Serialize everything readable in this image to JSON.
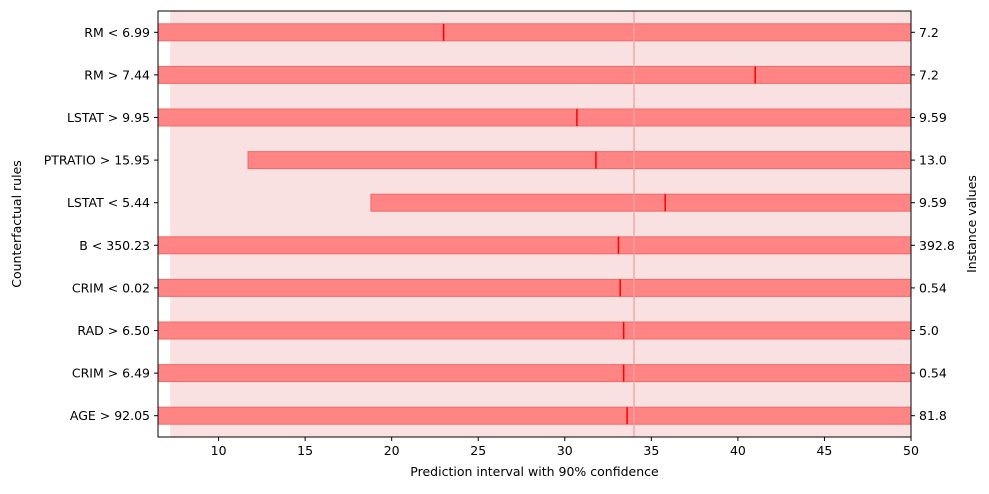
{
  "chart_data": {
    "type": "bar",
    "orientation": "horizontal",
    "xlabel": "Prediction interval with 90% confidence",
    "ylabel": "Counterfactual rules",
    "ylabel_right": "Instance values",
    "xlim": [
      6.5,
      50
    ],
    "xticks": [
      10,
      15,
      20,
      25,
      30,
      35,
      40,
      45,
      50
    ],
    "grid": false,
    "legend": "none",
    "baseline": {
      "prediction": 34.0,
      "interval": [
        7.2,
        50
      ]
    },
    "rules": [
      {
        "label": "RM < 6.99",
        "low": 6.5,
        "high": 50,
        "prediction": 23.0,
        "instance_value": "7.2"
      },
      {
        "label": "RM > 7.44",
        "low": 6.5,
        "high": 50,
        "prediction": 41.0,
        "instance_value": "7.2"
      },
      {
        "label": "LSTAT > 9.95",
        "low": 6.5,
        "high": 50,
        "prediction": 30.7,
        "instance_value": "9.59"
      },
      {
        "label": "PTRATIO > 15.95",
        "low": 11.7,
        "high": 50,
        "prediction": 31.8,
        "instance_value": "13.0"
      },
      {
        "label": "LSTAT < 5.44",
        "low": 18.8,
        "high": 50,
        "prediction": 35.8,
        "instance_value": "9.59"
      },
      {
        "label": "B < 350.23",
        "low": 6.5,
        "high": 50,
        "prediction": 33.1,
        "instance_value": "392.8"
      },
      {
        "label": "CRIM < 0.02",
        "low": 6.5,
        "high": 50,
        "prediction": 33.2,
        "instance_value": "0.54"
      },
      {
        "label": "RAD > 6.50",
        "low": 6.5,
        "high": 50,
        "prediction": 33.4,
        "instance_value": "5.0"
      },
      {
        "label": "CRIM > 6.49",
        "low": 6.5,
        "high": 50,
        "prediction": 33.4,
        "instance_value": "0.54"
      },
      {
        "label": "AGE > 92.05",
        "low": 6.5,
        "high": 50,
        "prediction": 33.6,
        "instance_value": "81.8"
      }
    ],
    "colors": {
      "bar": "#ff8484",
      "bar_edge": "#f06a6a",
      "band": "#f9e1e1",
      "marker": "#ff0000",
      "baseline_line": "#f4a0a0"
    }
  }
}
